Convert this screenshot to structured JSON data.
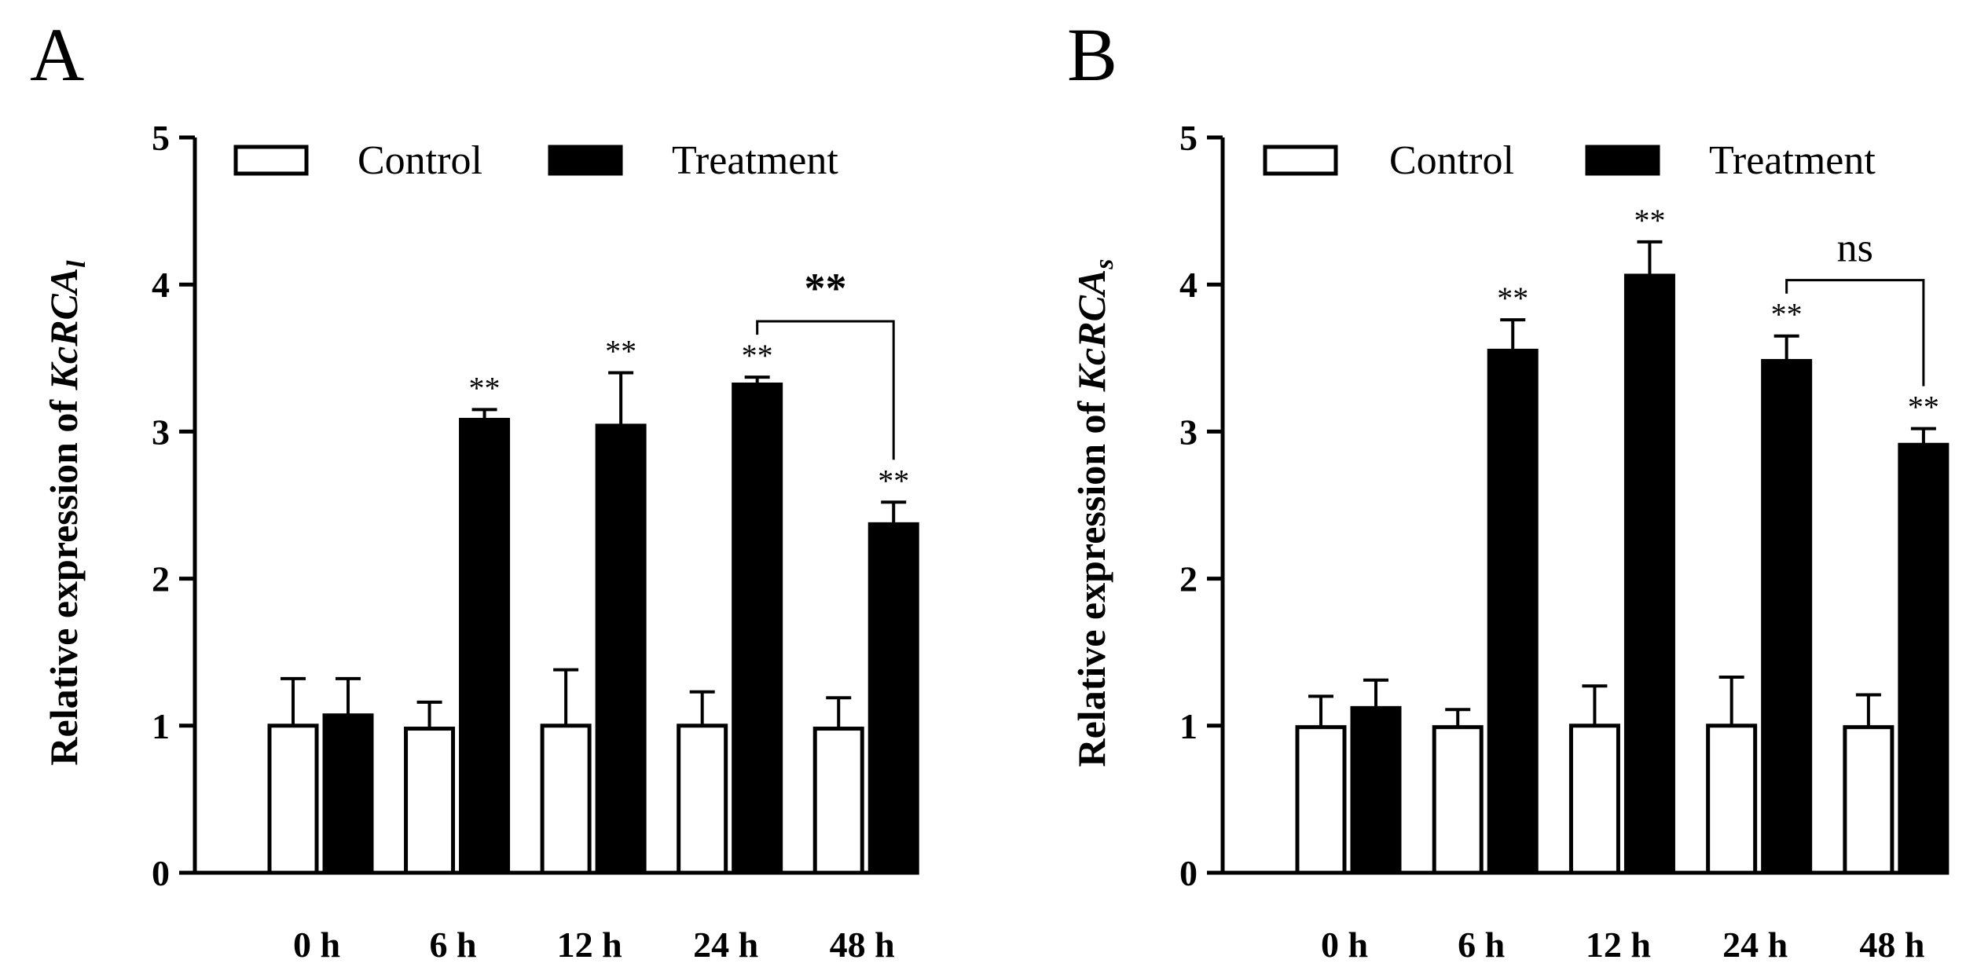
{
  "chart_data": [
    {
      "panel": "A",
      "type": "bar",
      "ylabel_prefix": "Relative expression of ",
      "ylabel_gene": "KcRCA",
      "ylabel_subscript": "l",
      "ylim": [
        0,
        5
      ],
      "yticks": [
        "0",
        "1",
        "2",
        "3",
        "4",
        "5"
      ],
      "categories": [
        "0 h",
        "6 h",
        "12 h",
        "24 h",
        "48 h"
      ],
      "series": [
        {
          "name": "Control",
          "fill": "#ffffff",
          "stroke": "#000000",
          "values": [
            1.0,
            0.98,
            1.0,
            1.0,
            0.98
          ],
          "errors": [
            0.32,
            0.18,
            0.38,
            0.23,
            0.21
          ],
          "labels": [
            "",
            "",
            "",
            "",
            ""
          ]
        },
        {
          "name": "Treatment",
          "fill": "#000000",
          "stroke": "#000000",
          "values": [
            1.07,
            3.08,
            3.04,
            3.32,
            2.37
          ],
          "errors": [
            0.25,
            0.07,
            0.36,
            0.05,
            0.15
          ],
          "labels": [
            "",
            "**",
            "**",
            "**",
            "**"
          ]
        }
      ],
      "bracket": {
        "from": 3,
        "to": 4,
        "label": "**",
        "style": "bold"
      }
    },
    {
      "panel": "B",
      "type": "bar",
      "ylabel_prefix": "Relative expression of ",
      "ylabel_gene": "KcRCA",
      "ylabel_subscript": "s",
      "ylim": [
        0,
        5
      ],
      "yticks": [
        "0",
        "1",
        "2",
        "3",
        "4",
        "5"
      ],
      "categories": [
        "0 h",
        "6 h",
        "12 h",
        "24 h",
        "48 h"
      ],
      "series": [
        {
          "name": "Control",
          "fill": "#ffffff",
          "stroke": "#000000",
          "values": [
            0.99,
            0.99,
            1.0,
            1.0,
            0.99
          ],
          "errors": [
            0.21,
            0.12,
            0.27,
            0.33,
            0.22
          ],
          "labels": [
            "",
            "",
            "",
            "",
            ""
          ]
        },
        {
          "name": "Treatment",
          "fill": "#000000",
          "stroke": "#000000",
          "values": [
            1.12,
            3.55,
            4.06,
            3.48,
            2.91
          ],
          "errors": [
            0.19,
            0.21,
            0.23,
            0.17,
            0.11
          ],
          "labels": [
            "",
            "**",
            "**",
            "**",
            "**"
          ]
        }
      ],
      "bracket": {
        "from": 3,
        "to": 4,
        "label": "ns",
        "style": "normal"
      }
    }
  ]
}
